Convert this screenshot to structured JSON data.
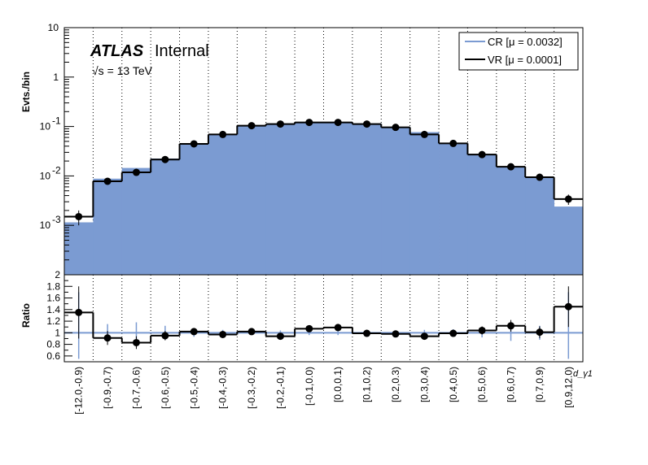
{
  "chart_data": [
    {
      "type": "histogram",
      "panel": "main",
      "ylabel": "Evts./bin",
      "yscale": "log",
      "ylim": [
        0.0001,
        10
      ],
      "y_ticks": [
        {
          "v": 0.001,
          "base": "10",
          "exp": "-3"
        },
        {
          "v": 0.01,
          "base": "10",
          "exp": "-2"
        },
        {
          "v": 0.1,
          "base": "10",
          "exp": "-1"
        },
        {
          "v": 1,
          "base": "1",
          "exp": ""
        },
        {
          "v": 10,
          "base": "10",
          "exp": ""
        }
      ],
      "categories": [
        "[-12.0,-0.9)",
        "[-0.9,-0.7)",
        "[-0.7,-0.6)",
        "[-0.6,-0.5)",
        "[-0.5,-0.4)",
        "[-0.4,-0.3)",
        "[-0.3,-0.2)",
        "[-0.2,-0.1)",
        "[-0.1,0.0)",
        "[0.0,0.1)",
        "[0.1,0.2)",
        "[0.2,0.3)",
        "[0.3,0.4)",
        "[0.4,0.5)",
        "[0.5,0.6)",
        "[0.6,0.7)",
        "[0.7,0.9)",
        "[0.9,12.0)"
      ],
      "series": [
        {
          "name": "CR [μ = 0.0032]",
          "style": "filled",
          "color": "#7b9bd2",
          "values": [
            0.00115,
            0.0088,
            0.0145,
            0.0225,
            0.044,
            0.071,
            0.105,
            0.116,
            0.118,
            0.117,
            0.116,
            0.098,
            0.077,
            0.047,
            0.028,
            0.0155,
            0.0095,
            0.0024
          ]
        },
        {
          "name": "VR [μ = 0.0001]",
          "style": "line+points",
          "color": "#000000",
          "values": [
            0.0015,
            0.0078,
            0.0118,
            0.0215,
            0.0445,
            0.069,
            0.104,
            0.112,
            0.121,
            0.121,
            0.112,
            0.096,
            0.069,
            0.0455,
            0.027,
            0.0153,
            0.0094,
            0.0034
          ],
          "errors": [
            0.0005,
            0.0009,
            0.0013,
            0.0015,
            0.002,
            0.0025,
            0.003,
            0.003,
            0.003,
            0.003,
            0.003,
            0.003,
            0.0025,
            0.002,
            0.0015,
            0.0012,
            0.0008,
            0.0008
          ]
        }
      ],
      "legend": "top-right",
      "grid": "vertical dotted at bin edges",
      "annotations": {
        "brand": "ATLAS",
        "status": "Internal",
        "energy": "√s = 13 TeV"
      }
    },
    {
      "type": "histogram",
      "panel": "ratio",
      "ylabel": "Ratio",
      "ylim": [
        0.5,
        2.0
      ],
      "y_tick_labels": [
        "0.6",
        "0.8",
        "1",
        "1.2",
        "1.4",
        "1.6",
        "1.8",
        "2"
      ],
      "xlabel": "d_γ1",
      "reference_line": 1.0,
      "values": [
        1.35,
        0.91,
        0.83,
        0.95,
        1.02,
        0.97,
        1.02,
        0.94,
        1.07,
        1.09,
        0.99,
        0.98,
        0.94,
        0.99,
        1.04,
        1.12,
        1.01,
        1.45
      ],
      "errors": [
        0.45,
        0.12,
        0.11,
        0.08,
        0.05,
        0.04,
        0.03,
        0.03,
        0.03,
        0.03,
        0.03,
        0.03,
        0.04,
        0.05,
        0.07,
        0.1,
        0.1,
        0.35
      ],
      "ref_band": [
        0.7,
        0.15,
        0.18,
        0.12,
        0.07,
        0.05,
        0.04,
        0.04,
        0.04,
        0.04,
        0.04,
        0.04,
        0.05,
        0.06,
        0.08,
        0.14,
        0.12,
        0.7
      ]
    }
  ]
}
